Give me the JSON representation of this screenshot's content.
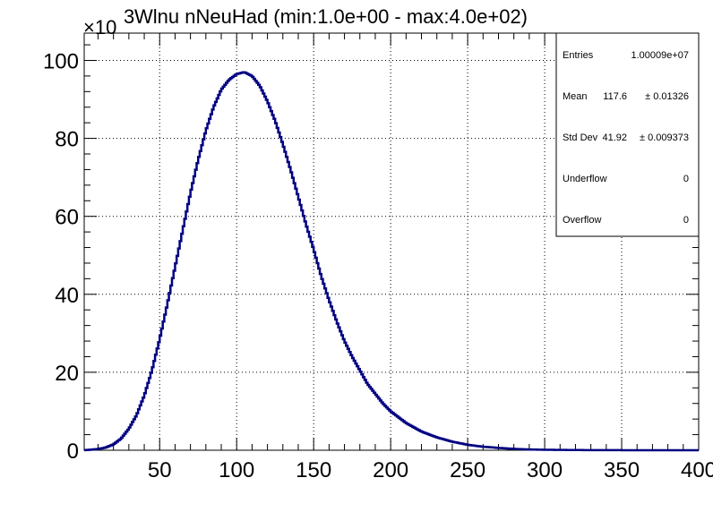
{
  "chart_data": {
    "type": "histogram",
    "title": "Wlnu nNeuHad (min:1.0e+00 - max:4.0e+02)",
    "y_multiplier": "×10",
    "y_multiplier_exp": "3",
    "xlim": [
      1,
      400
    ],
    "ylim": [
      0,
      107
    ],
    "grid": true,
    "line_color": "#000080",
    "x_ticks": [
      50,
      100,
      150,
      200,
      250,
      300,
      350,
      400
    ],
    "x_tick_labels": [
      "50",
      "100",
      "150",
      "200",
      "250",
      "300",
      "350",
      "400"
    ],
    "y_ticks": [
      0,
      20,
      40,
      60,
      80,
      100
    ],
    "y_tick_labels": [
      "0",
      "20",
      "40",
      "60",
      "80",
      "100"
    ],
    "curve_points": [
      [
        1,
        0
      ],
      [
        10,
        0.3
      ],
      [
        15,
        0.7
      ],
      [
        20,
        1.5
      ],
      [
        25,
        3.0
      ],
      [
        30,
        5.5
      ],
      [
        35,
        9.0
      ],
      [
        40,
        14.0
      ],
      [
        45,
        20.5
      ],
      [
        50,
        28.5
      ],
      [
        55,
        37.5
      ],
      [
        60,
        47.0
      ],
      [
        65,
        56.5
      ],
      [
        70,
        66.0
      ],
      [
        75,
        74.5
      ],
      [
        80,
        82.0
      ],
      [
        85,
        88.0
      ],
      [
        90,
        92.5
      ],
      [
        95,
        95.0
      ],
      [
        100,
        96.5
      ],
      [
        105,
        97.0
      ],
      [
        110,
        96.0
      ],
      [
        115,
        93.5
      ],
      [
        120,
        89.5
      ],
      [
        125,
        84.5
      ],
      [
        130,
        78.5
      ],
      [
        135,
        72.0
      ],
      [
        140,
        65.0
      ],
      [
        145,
        58.0
      ],
      [
        150,
        51.5
      ],
      [
        155,
        44.5
      ],
      [
        160,
        38.5
      ],
      [
        165,
        33.0
      ],
      [
        170,
        28.0
      ],
      [
        175,
        24.0
      ],
      [
        180,
        20.5
      ],
      [
        185,
        17.0
      ],
      [
        190,
        14.5
      ],
      [
        195,
        12.0
      ],
      [
        200,
        10.0
      ],
      [
        210,
        7.0
      ],
      [
        220,
        4.8
      ],
      [
        230,
        3.3
      ],
      [
        240,
        2.2
      ],
      [
        250,
        1.4
      ],
      [
        260,
        0.9
      ],
      [
        270,
        0.6
      ],
      [
        280,
        0.35
      ],
      [
        290,
        0.2
      ],
      [
        300,
        0.12
      ],
      [
        320,
        0.05
      ],
      [
        340,
        0.02
      ],
      [
        360,
        0.01
      ],
      [
        380,
        0.0
      ],
      [
        400,
        0.0
      ]
    ]
  },
  "stats": {
    "rows": [
      {
        "label": "Entries",
        "value": "1.00009e+07",
        "error": ""
      },
      {
        "label": "Mean",
        "value": "117.6",
        "error": "± 0.01326"
      },
      {
        "label": "Std Dev",
        "value": "41.92",
        "error": "± 0.009373"
      },
      {
        "label": "Underflow",
        "value": "0",
        "error": ""
      },
      {
        "label": "Overflow",
        "value": "0",
        "error": ""
      }
    ]
  }
}
